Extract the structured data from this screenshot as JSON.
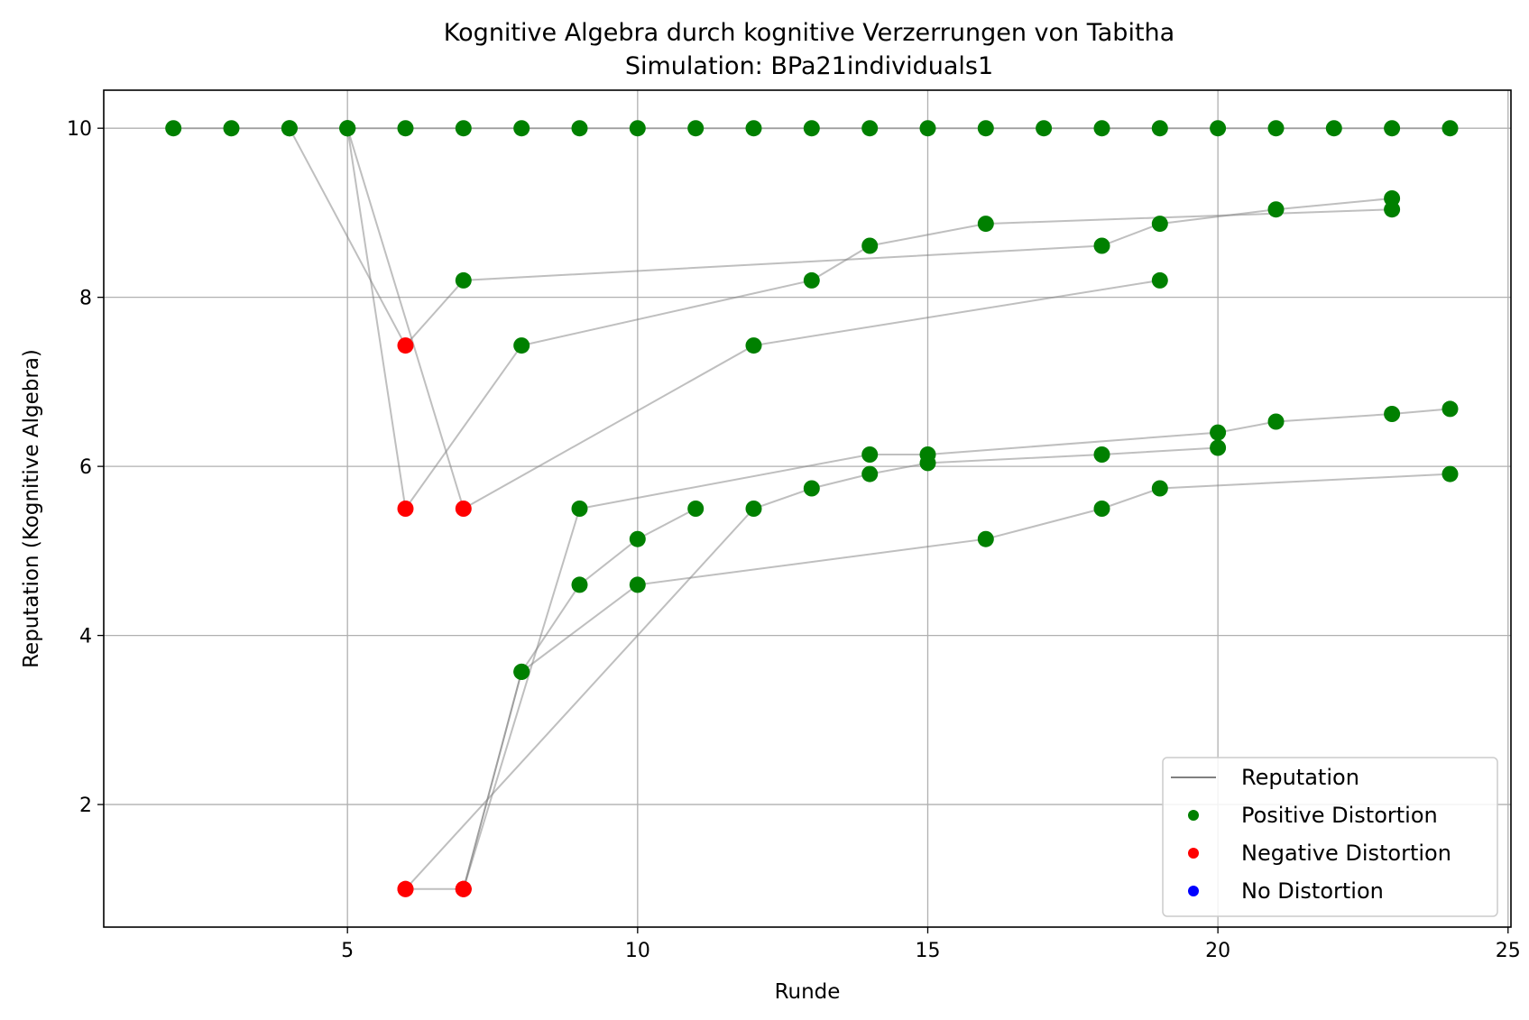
{
  "chart_data": {
    "type": "line",
    "title": "Kognitive Algebra durch kognitive Verzerrungen von Tabitha",
    "subtitle": "Simulation: BPa21individuals1",
    "xlabel": "Runde",
    "ylabel": "Reputation (Kognitive Algebra)",
    "xlim": [
      0.8,
      25.05
    ],
    "ylim": [
      0.55,
      10.45
    ],
    "xticks": [
      5,
      10,
      15,
      20,
      25
    ],
    "yticks": [
      2,
      4,
      6,
      8,
      10
    ],
    "grid": true,
    "legend_position": "lower right",
    "legend": [
      {
        "label": "Reputation",
        "kind": "line",
        "color": "#808080"
      },
      {
        "label": "Positive Distortion",
        "kind": "marker",
        "color": "#008000"
      },
      {
        "label": "Negative Distortion",
        "kind": "marker",
        "color": "#ff0000"
      },
      {
        "label": "No Distortion",
        "kind": "marker",
        "color": "#0000ff"
      }
    ],
    "colors": {
      "positive": "#008000",
      "negative": "#ff0000",
      "neutral": "#0000ff",
      "line": "#808080"
    },
    "series": [
      {
        "points": [
          [
            2,
            10
          ],
          [
            3,
            10
          ],
          [
            4,
            10
          ],
          [
            5,
            10
          ],
          [
            6,
            10
          ],
          [
            7,
            10
          ],
          [
            8,
            10
          ],
          [
            9,
            10
          ],
          [
            10,
            10
          ],
          [
            11,
            10
          ],
          [
            12,
            10
          ],
          [
            13,
            10
          ],
          [
            14,
            10
          ],
          [
            15,
            10
          ],
          [
            16,
            10
          ],
          [
            17,
            10
          ],
          [
            18,
            10
          ],
          [
            19,
            10
          ],
          [
            20,
            10
          ],
          [
            21,
            10
          ],
          [
            22,
            10
          ],
          [
            23,
            10
          ],
          [
            24,
            10
          ]
        ],
        "distortion": [
          "p",
          "p",
          "p",
          "p",
          "p",
          "p",
          "p",
          "p",
          "p",
          "p",
          "p",
          "p",
          "p",
          "p",
          "p",
          "p",
          "p",
          "p",
          "p",
          "p",
          "p",
          "p",
          "p"
        ]
      },
      {
        "points": [
          [
            4,
            10
          ],
          [
            6,
            7.43
          ],
          [
            7,
            8.2
          ],
          [
            18,
            8.61
          ],
          [
            19,
            8.87
          ],
          [
            21,
            9.04
          ],
          [
            23,
            9.17
          ]
        ],
        "distortion": [
          "p",
          "n",
          "p",
          "p",
          "p",
          "p",
          "p"
        ]
      },
      {
        "points": [
          [
            5,
            10
          ],
          [
            6,
            5.5
          ],
          [
            8,
            7.43
          ],
          [
            13,
            8.2
          ],
          [
            14,
            8.61
          ],
          [
            16,
            8.87
          ],
          [
            23,
            9.04
          ]
        ],
        "distortion": [
          "p",
          "n",
          "p",
          "p",
          "p",
          "p",
          "p"
        ]
      },
      {
        "points": [
          [
            5,
            10
          ],
          [
            7,
            5.5
          ],
          [
            12,
            7.43
          ],
          [
            19,
            8.2
          ]
        ],
        "distortion": [
          "p",
          "n",
          "p",
          "p"
        ]
      },
      {
        "points": [
          [
            6,
            1
          ],
          [
            12,
            5.5
          ],
          [
            13,
            5.74
          ],
          [
            14,
            5.91
          ],
          [
            15,
            6.04
          ],
          [
            18,
            6.14
          ],
          [
            20,
            6.22
          ]
        ],
        "distortion": [
          "n",
          "p",
          "p",
          "p",
          "p",
          "p",
          "p"
        ]
      },
      {
        "points": [
          [
            6,
            1
          ],
          [
            7,
            1
          ],
          [
            9,
            5.5
          ],
          [
            14,
            6.14
          ],
          [
            15,
            6.14
          ],
          [
            20,
            6.4
          ],
          [
            21,
            6.53
          ],
          [
            23,
            6.62
          ],
          [
            24,
            6.68
          ]
        ],
        "distortion": [
          "n",
          "n",
          "p",
          "p",
          "p",
          "p",
          "p",
          "p",
          "p"
        ]
      },
      {
        "points": [
          [
            7,
            1
          ],
          [
            8,
            3.57
          ],
          [
            9,
            4.6
          ],
          [
            10,
            5.14
          ],
          [
            11,
            5.5
          ]
        ],
        "distortion": [
          "n",
          "p",
          "p",
          "p",
          "p"
        ]
      },
      {
        "points": [
          [
            7,
            1
          ],
          [
            8,
            3.57
          ],
          [
            10,
            4.6
          ],
          [
            16,
            5.14
          ],
          [
            18,
            5.5
          ],
          [
            19,
            5.74
          ],
          [
            24,
            5.91
          ]
        ],
        "distortion": [
          "n",
          "p",
          "p",
          "p",
          "p",
          "p",
          "p"
        ]
      }
    ]
  }
}
